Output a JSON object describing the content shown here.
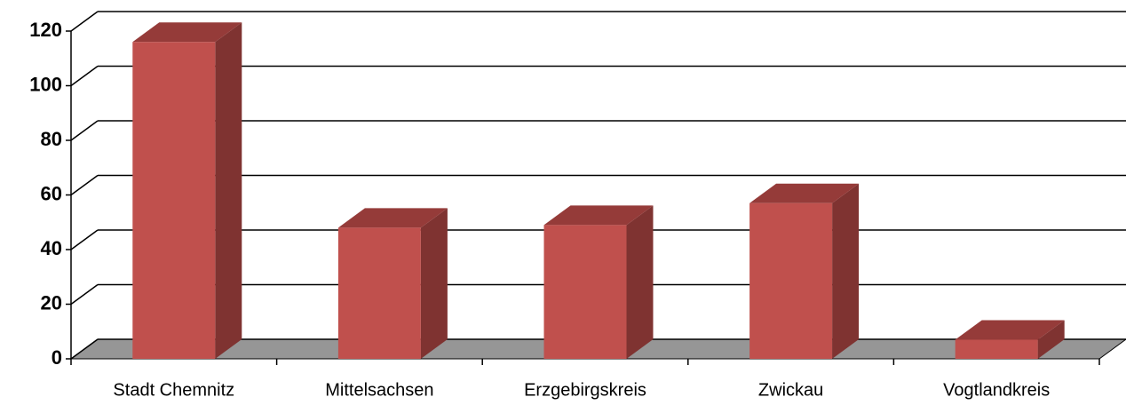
{
  "chart_data": {
    "type": "bar3d",
    "categories": [
      "Stadt Chemnitz",
      "Mittelsachsen",
      "Erzgebirgskreis",
      "Zwickau",
      "Vogtlandkreis"
    ],
    "values": [
      116,
      48,
      49,
      57,
      7
    ],
    "color": "#c0504d",
    "ylim": [
      0,
      120
    ],
    "yticks": [
      0,
      20,
      40,
      60,
      80,
      100,
      120
    ],
    "grid": true
  }
}
